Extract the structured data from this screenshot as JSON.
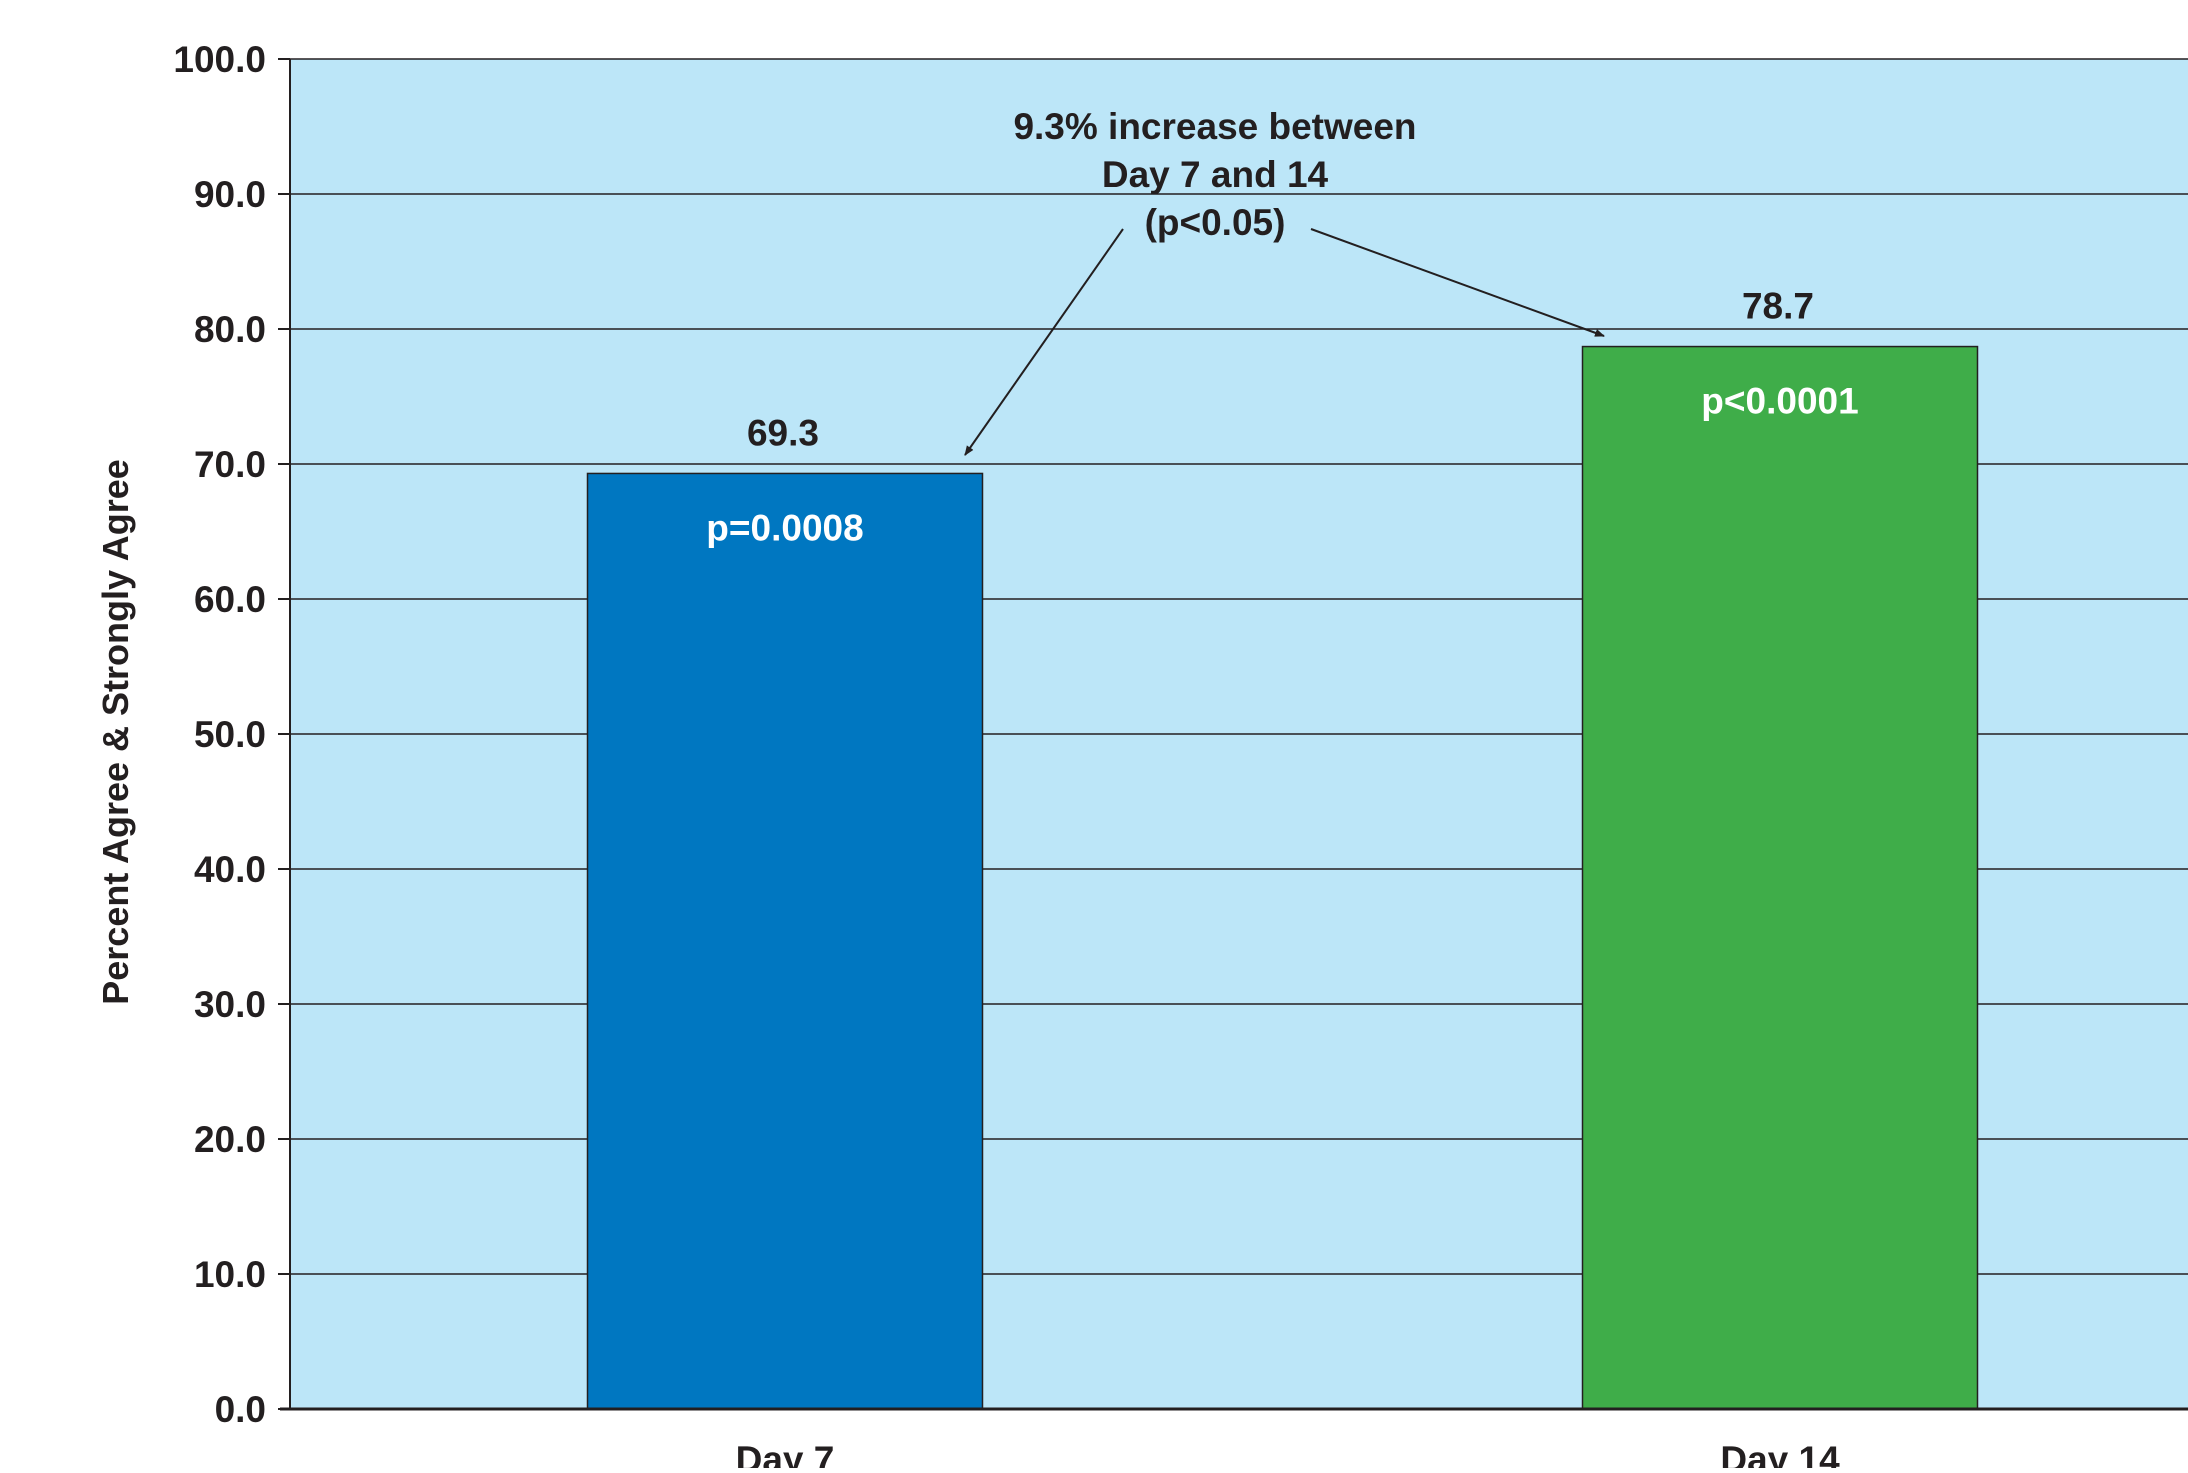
{
  "chart_data": {
    "type": "bar",
    "categories": [
      "Day 7",
      "Day 14"
    ],
    "values": [
      69.3,
      78.7
    ],
    "value_labels": [
      "69.3",
      "78.7"
    ],
    "bar_annotations": [
      "p=0.0008",
      "p<0.0001"
    ],
    "bar_colors": [
      "#0077c1",
      "#3fad49"
    ],
    "ylabel": "Percent Agree & Strongly Agree",
    "ylim": [
      0,
      100
    ],
    "yticks": [
      0,
      10,
      20,
      30,
      40,
      50,
      60,
      70,
      80,
      90,
      100
    ],
    "ytick_labels": [
      "0.0",
      "10.0",
      "20.0",
      "30.0",
      "40.0",
      "50.0",
      "60.0",
      "70.0",
      "80.0",
      "90.0",
      "100.0"
    ],
    "grid": true,
    "annotation": {
      "lines": [
        "9.3% increase between",
        "Day 7 and 14",
        "(p<0.05)"
      ],
      "arrows_to": [
        "Day 7",
        "Day 14"
      ]
    },
    "colors": {
      "plot_background": "#bce6f8",
      "gridline": "#231f20",
      "text": "#231f20",
      "bar_text": "#ffffff"
    }
  }
}
